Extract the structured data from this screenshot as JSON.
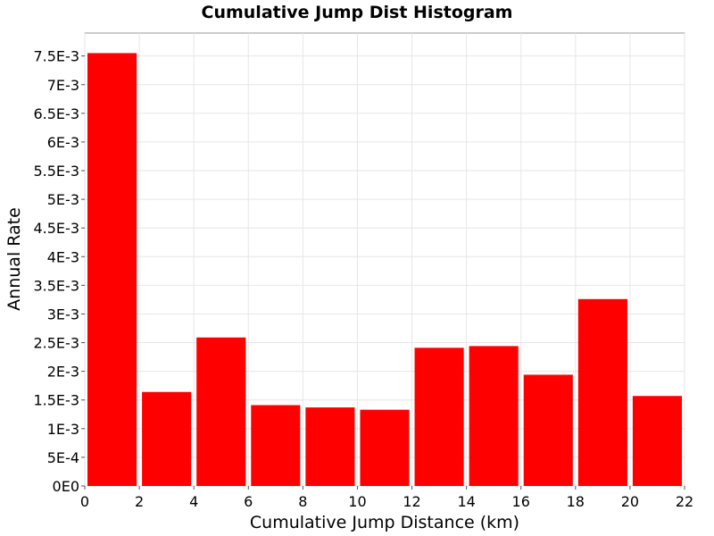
{
  "chart_data": {
    "type": "bar",
    "title": "Cumulative Jump Dist Histogram",
    "xlabel": "Cumulative Jump Distance (km)",
    "ylabel": "Annual Rate",
    "xlim": [
      0,
      22
    ],
    "ylim": [
      0,
      0.0079
    ],
    "grid": true,
    "legend": "none",
    "bar_color": "#ff0000",
    "x_ticks": [
      {
        "value": 0,
        "label": "0"
      },
      {
        "value": 2,
        "label": "2"
      },
      {
        "value": 4,
        "label": "4"
      },
      {
        "value": 6,
        "label": "6"
      },
      {
        "value": 8,
        "label": "8"
      },
      {
        "value": 10,
        "label": "10"
      },
      {
        "value": 12,
        "label": "12"
      },
      {
        "value": 14,
        "label": "14"
      },
      {
        "value": 16,
        "label": "16"
      },
      {
        "value": 18,
        "label": "18"
      },
      {
        "value": 20,
        "label": "20"
      },
      {
        "value": 22,
        "label": "22"
      }
    ],
    "y_ticks": [
      {
        "value": 0,
        "label": "0E0"
      },
      {
        "value": 0.0005,
        "label": "5E-4"
      },
      {
        "value": 0.001,
        "label": "1E-3"
      },
      {
        "value": 0.0015,
        "label": "1.5E-3"
      },
      {
        "value": 0.002,
        "label": "2E-3"
      },
      {
        "value": 0.0025,
        "label": "2.5E-3"
      },
      {
        "value": 0.003,
        "label": "3E-3"
      },
      {
        "value": 0.0035,
        "label": "3.5E-3"
      },
      {
        "value": 0.004,
        "label": "4E-3"
      },
      {
        "value": 0.0045,
        "label": "4.5E-3"
      },
      {
        "value": 0.005,
        "label": "5E-3"
      },
      {
        "value": 0.0055,
        "label": "5.5E-3"
      },
      {
        "value": 0.006,
        "label": "6E-3"
      },
      {
        "value": 0.0065,
        "label": "6.5E-3"
      },
      {
        "value": 0.007,
        "label": "7E-3"
      },
      {
        "value": 0.0075,
        "label": "7.5E-3"
      }
    ],
    "bins": [
      {
        "start": 0,
        "end": 2,
        "value": 0.00755
      },
      {
        "start": 2,
        "end": 4,
        "value": 0.00164
      },
      {
        "start": 4,
        "end": 6,
        "value": 0.00259
      },
      {
        "start": 6,
        "end": 8,
        "value": 0.00141
      },
      {
        "start": 8,
        "end": 10,
        "value": 0.00137
      },
      {
        "start": 10,
        "end": 12,
        "value": 0.00133
      },
      {
        "start": 12,
        "end": 14,
        "value": 0.00241
      },
      {
        "start": 14,
        "end": 16,
        "value": 0.00244
      },
      {
        "start": 16,
        "end": 18,
        "value": 0.00194
      },
      {
        "start": 18,
        "end": 20,
        "value": 0.00326
      },
      {
        "start": 20,
        "end": 22,
        "value": 0.00157
      }
    ]
  }
}
